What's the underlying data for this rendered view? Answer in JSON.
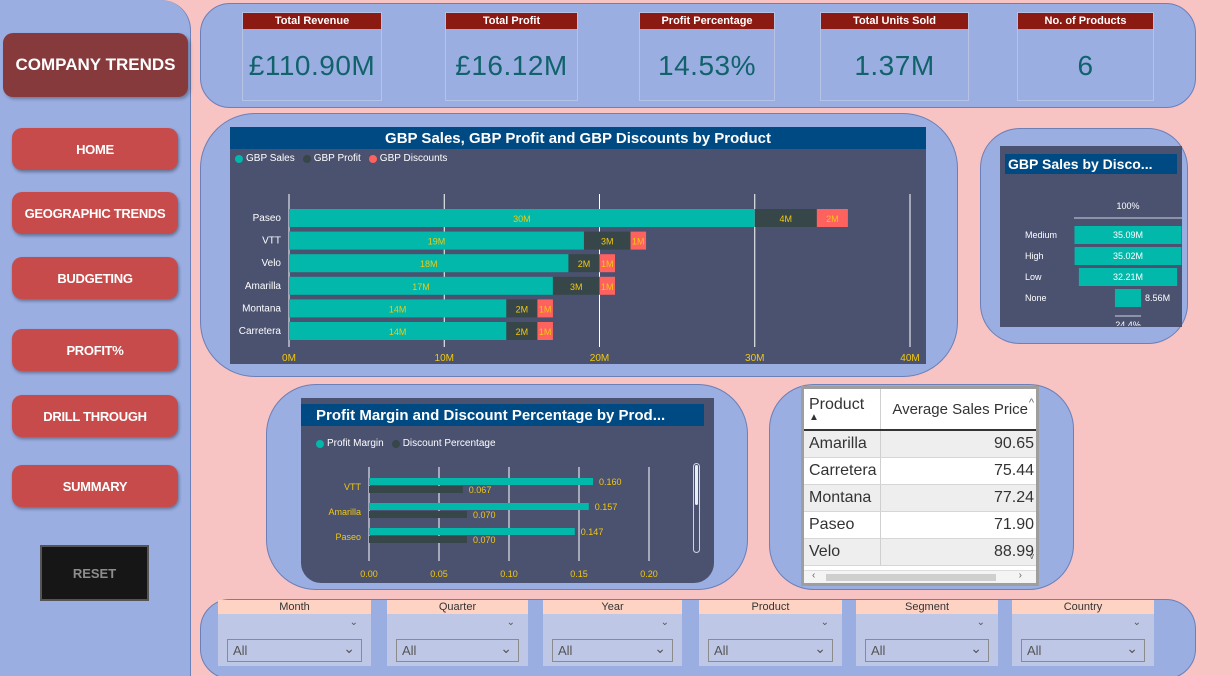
{
  "sidebar": {
    "brand": "COMPANY TRENDS",
    "nav": [
      "HOME",
      "GEOGRAPHIC TRENDS",
      "BUDGETING",
      "PROFIT%",
      "DRILL THROUGH",
      "SUMMARY"
    ],
    "reset": "RESET"
  },
  "kpis": [
    {
      "title": "Total Revenue",
      "value": "£110.90M"
    },
    {
      "title": "Total Profit",
      "value": "£16.12M"
    },
    {
      "title": "Profit Percentage",
      "value": "14.53%"
    },
    {
      "title": "Total Units Sold",
      "value": "1.37M"
    },
    {
      "title": "No. of Products",
      "value": "6"
    }
  ],
  "colors": {
    "sales": "#01b8aa",
    "profit": "#374649",
    "discounts": "#fd625e",
    "label": "#f2c80f"
  },
  "charts": {
    "sales_profit": {
      "title": "GBP Sales, GBP Profit and GBP Discounts by Product",
      "legend": [
        "GBP Sales",
        "GBP Profit",
        "GBP Discounts"
      ]
    },
    "discount_band": {
      "title": "GBP Sales by Disco...",
      "top_label": "100%",
      "bottom_label": "24.4%"
    },
    "margin": {
      "title": "Profit Margin and Discount Percentage by Prod...",
      "legend": [
        "Profit Margin",
        "Discount Percentage"
      ]
    }
  },
  "chart_data": [
    {
      "type": "bar",
      "title": "GBP Sales, GBP Profit and GBP Discounts by Product",
      "categories": [
        "Paseo",
        "VTT",
        "Velo",
        "Amarilla",
        "Montana",
        "Carretera"
      ],
      "series": [
        {
          "name": "GBP Sales",
          "values": [
            30,
            19,
            18,
            17,
            14,
            14
          ],
          "labels": [
            "30M",
            "19M",
            "18M",
            "17M",
            "14M",
            "14M"
          ]
        },
        {
          "name": "GBP Profit",
          "values": [
            4,
            3,
            2,
            3,
            2,
            2
          ],
          "labels": [
            "4M",
            "3M",
            "2M",
            "3M",
            "2M",
            "2M"
          ]
        },
        {
          "name": "GBP Discounts",
          "values": [
            2,
            1,
            1,
            1,
            1,
            1
          ],
          "labels": [
            "2M",
            "1M",
            "1M",
            "1M",
            "1M",
            "1M"
          ]
        }
      ],
      "xticks": [
        "0M",
        "10M",
        "20M",
        "30M",
        "40M"
      ],
      "xlim": [
        0,
        40
      ]
    },
    {
      "type": "bar",
      "title": "GBP Sales by Disco...",
      "categories": [
        "Medium",
        "High",
        "Low",
        "None"
      ],
      "values": [
        35.09,
        35.02,
        32.21,
        8.56
      ],
      "labels": [
        "35.09M",
        "35.02M",
        "32.21M",
        "8.56M"
      ]
    },
    {
      "type": "bar",
      "title": "Profit Margin and Discount Percentage by Prod...",
      "categories": [
        "VTT",
        "Amarilla",
        "Paseo"
      ],
      "series": [
        {
          "name": "Profit Margin",
          "values": [
            0.16,
            0.157,
            0.147
          ],
          "labels": [
            "0.160",
            "0.157",
            "0.147"
          ]
        },
        {
          "name": "Discount Percentage",
          "values": [
            0.067,
            0.07,
            0.07
          ],
          "labels": [
            "0.067",
            "0.070",
            "0.070"
          ]
        }
      ],
      "xticks": [
        "0.00",
        "0.05",
        "0.10",
        "0.15",
        "0.20"
      ],
      "xlim": [
        0,
        0.2
      ]
    },
    {
      "type": "table",
      "columns": [
        "Product",
        "Average Sales Price"
      ],
      "rows": [
        [
          "Amarilla",
          "90.65"
        ],
        [
          "Carretera",
          "75.44"
        ],
        [
          "Montana",
          "77.24"
        ],
        [
          "Paseo",
          "71.90"
        ],
        [
          "Velo",
          "88.99"
        ]
      ]
    }
  ],
  "filters": [
    {
      "label": "Month",
      "value": "All"
    },
    {
      "label": "Quarter",
      "value": "All"
    },
    {
      "label": "Year",
      "value": "All"
    },
    {
      "label": "Product",
      "value": "All"
    },
    {
      "label": "Segment",
      "value": "All"
    },
    {
      "label": "Country",
      "value": "All"
    }
  ]
}
